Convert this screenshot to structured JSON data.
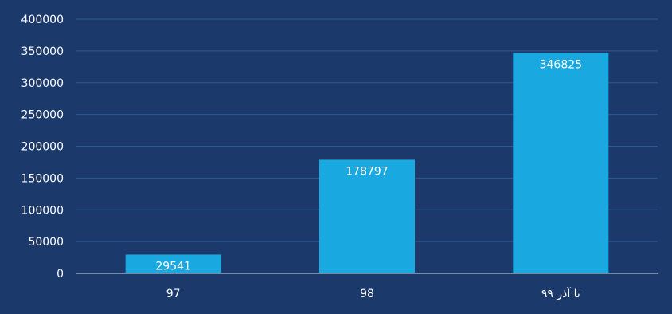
{
  "chart_data": {
    "type": "bar",
    "title": "",
    "xlabel": "",
    "ylabel": "",
    "categories": [
      "97",
      "98",
      "تا آذر ۹۹"
    ],
    "values": [
      29541,
      178797,
      346825
    ],
    "data_labels": [
      "29541",
      "178797",
      "346825"
    ],
    "ylim": [
      0,
      400000
    ],
    "yticks": [
      0,
      50000,
      100000,
      150000,
      200000,
      250000,
      300000,
      350000,
      400000
    ],
    "ytick_labels": [
      "0",
      "50000",
      "100000",
      "150000",
      "200000",
      "250000",
      "300000",
      "350000",
      "400000"
    ],
    "grid": true,
    "legend": "none"
  },
  "colors": {
    "background": "#1b3a6b",
    "bar": "#19a8e0",
    "grid": "#2e5a8e",
    "axis": "#8ea7c6",
    "text": "#ffffff"
  }
}
